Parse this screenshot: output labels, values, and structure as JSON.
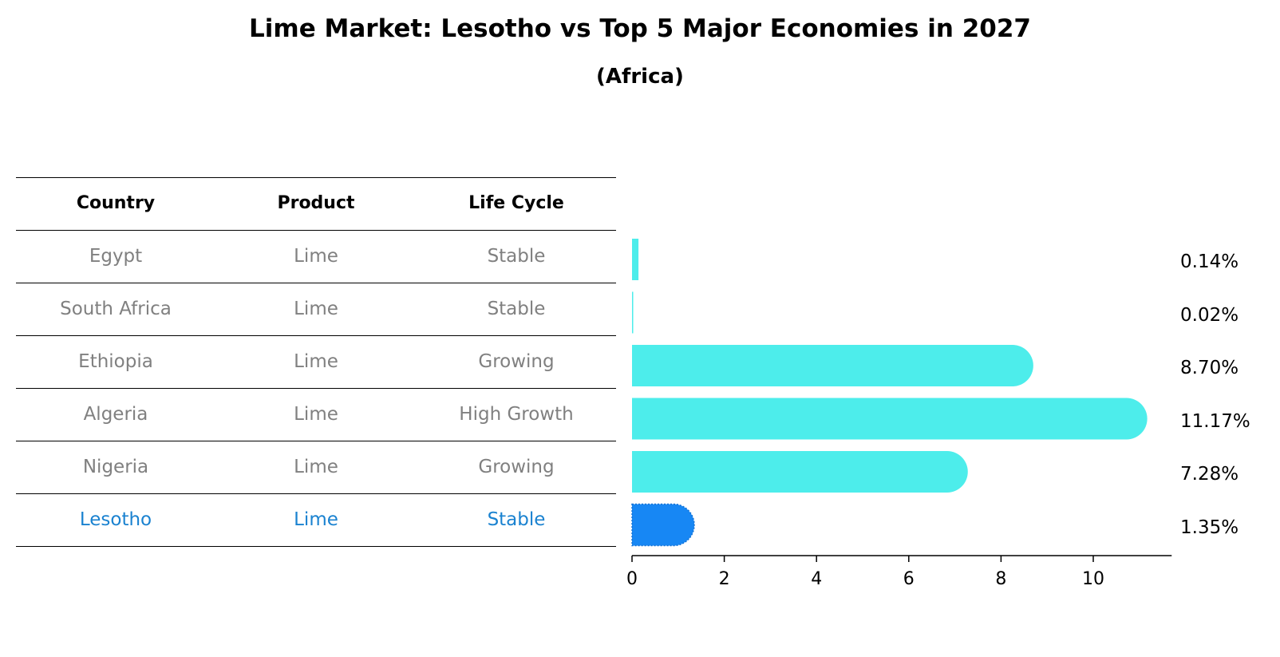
{
  "chart_data": {
    "type": "bar",
    "orientation": "horizontal",
    "title": "Lime Market: Lesotho vs Top 5 Major Economies in 2027",
    "subtitle": "(Africa)",
    "categories": [
      "Egypt",
      "South Africa",
      "Ethiopia",
      "Algeria",
      "Nigeria",
      "Lesotho"
    ],
    "values": [
      0.14,
      0.02,
      8.7,
      11.17,
      7.28,
      1.35
    ],
    "value_labels": [
      "0.14%",
      "0.02%",
      "8.70%",
      "11.17%",
      "7.28%",
      "1.35%"
    ],
    "highlight": "Lesotho",
    "xlim": [
      0,
      11.7
    ],
    "xticks": [
      0,
      2,
      4,
      6,
      8,
      10
    ],
    "xtick_labels": [
      "0",
      "2",
      "4",
      "6",
      "8",
      "10"
    ],
    "xlabel": "",
    "ylabel": "",
    "grid": false
  },
  "table": {
    "headers": [
      "Country",
      "Product",
      "Life Cycle"
    ],
    "rows": [
      [
        "Egypt",
        "Lime",
        "Stable"
      ],
      [
        "South Africa",
        "Lime",
        "Stable"
      ],
      [
        "Ethiopia",
        "Lime",
        "Growing"
      ],
      [
        "Algeria",
        "Lime",
        "High Growth"
      ],
      [
        "Nigeria",
        "Lime",
        "Growing"
      ],
      [
        "Lesotho",
        "Lime",
        "Stable"
      ]
    ]
  },
  "colors": {
    "bar": "#4dedeb",
    "highlight": "#1787f4",
    "text_muted": "#808080",
    "text_highlight": "#1a82d0"
  }
}
